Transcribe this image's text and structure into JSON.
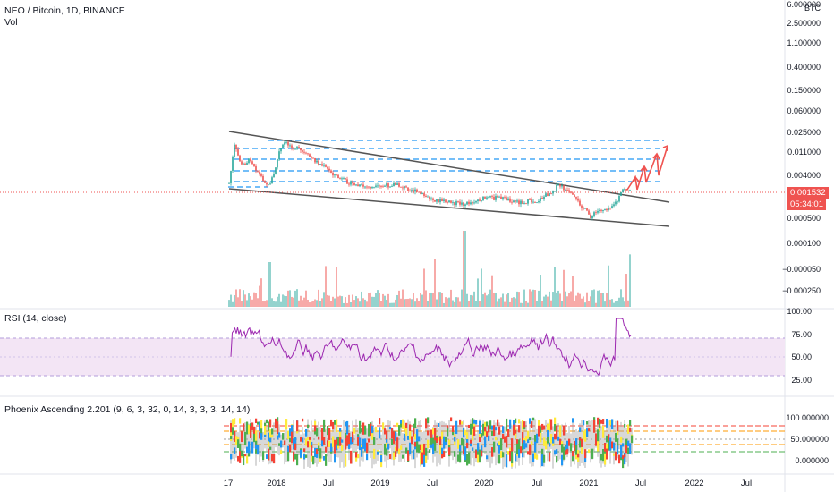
{
  "main_pane": {
    "symbol_line": "NEO / Bitcoin, 1D, BINANCE",
    "volume_label": "Vol",
    "currency": "BTC",
    "price_axis": [
      "6.000000",
      "2.500000",
      "1.100000",
      "0.400000",
      "0.150000",
      "0.060000",
      "0.025000",
      "0.011000",
      "0.004000",
      "0.000500",
      "0.000100",
      "−0.000050",
      "−0.000250"
    ],
    "last_price": "0.001532",
    "countdown": "05:34:01",
    "colors": {
      "up": "#26a69a",
      "down": "#ef5350",
      "channel": "#555555",
      "levels": "#2196f3",
      "arrows": "#ef5350",
      "price_line": "#ef5350"
    }
  },
  "rsi_pane": {
    "label": "RSI (14, close)",
    "axis": [
      "100.00",
      "75.00",
      "50.00",
      "25.00"
    ],
    "colors": {
      "line": "#9c27b0",
      "band": "#f3e5f5"
    }
  },
  "phoenix_pane": {
    "label": "Phoenix Ascending 2.201 (9, 6, 3, 32, 0, 14, 3, 3, 3, 14, 14)",
    "axis": [
      "100.000000",
      "50.000000",
      "0.000000"
    ],
    "colors": {
      "yellow": "#ffeb3b",
      "green": "#4caf50",
      "blue": "#2196f3",
      "red": "#f44336",
      "grey": "#9e9e9e"
    }
  },
  "time_axis": [
    "17",
    "2018",
    "Jul",
    "2019",
    "Jul",
    "2020",
    "Jul",
    "2021",
    "Jul",
    "2022",
    "Jul"
  ]
}
